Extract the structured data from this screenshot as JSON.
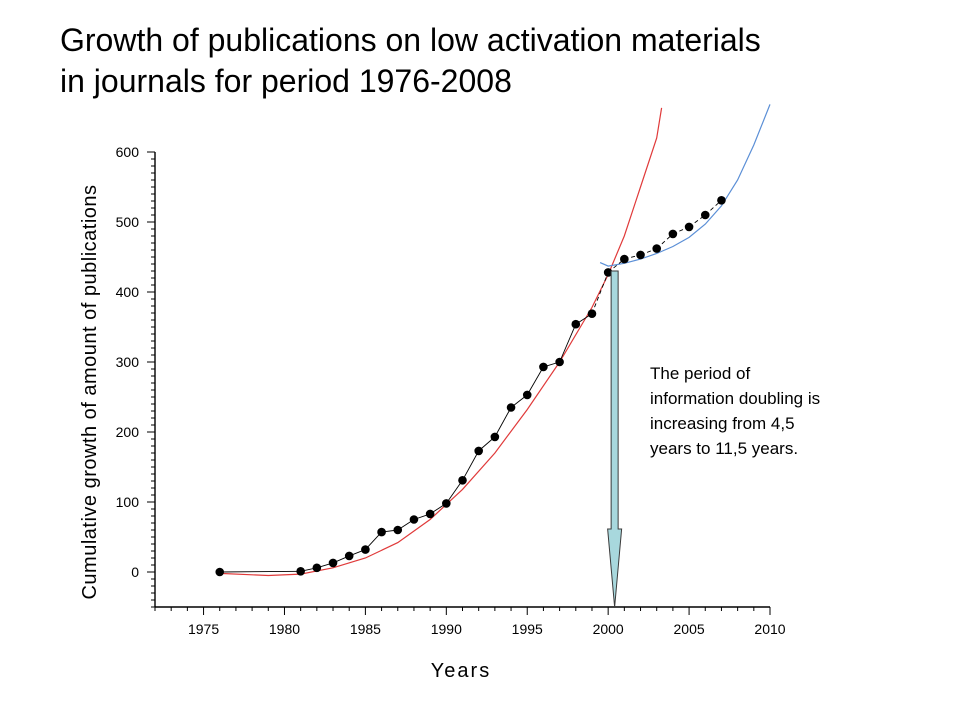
{
  "title": {
    "line1": "Growth of publications on low activation materials",
    "line2": "in journals for period 1976-2008"
  },
  "annotation": {
    "line1": "The period of",
    "line2": "information doubling is",
    "line3": "increasing  from 4,5",
    "line4": "years to 11,5 years."
  },
  "chart_data": {
    "type": "line",
    "xlabel": "Years",
    "ylabel": "Cumulative growth of amount of publications",
    "xlim": [
      1972,
      2010
    ],
    "ylim": [
      -50,
      600
    ],
    "xticks": [
      1975,
      1980,
      1985,
      1990,
      1995,
      2000,
      2005,
      2010
    ],
    "yticks": [
      0,
      100,
      200,
      300,
      400,
      500,
      600
    ],
    "grid": false,
    "legend": "none",
    "series": [
      {
        "marker": "circle",
        "line": "dashed",
        "color": "#000000",
        "points": [
          [
            1976,
            0
          ],
          [
            1981,
            1
          ],
          [
            1982,
            6
          ],
          [
            1983,
            13
          ],
          [
            1984,
            23
          ],
          [
            1985,
            32
          ],
          [
            1986,
            57
          ],
          [
            1987,
            60
          ],
          [
            1988,
            75
          ],
          [
            1989,
            83
          ],
          [
            1990,
            98
          ],
          [
            1991,
            131
          ],
          [
            1992,
            173
          ],
          [
            1993,
            193
          ],
          [
            1994,
            235
          ],
          [
            1995,
            253
          ],
          [
            1996,
            293
          ],
          [
            1997,
            300
          ],
          [
            1998,
            354
          ],
          [
            1999,
            369
          ],
          [
            2000,
            428
          ],
          [
            2001,
            447
          ],
          [
            2002,
            453
          ],
          [
            2003,
            462
          ],
          [
            2004,
            483
          ],
          [
            2005,
            493
          ],
          [
            2006,
            510
          ],
          [
            2007,
            531
          ]
        ]
      }
    ],
    "fit_curves": [
      {
        "color": "#e03a3a",
        "points": [
          [
            1976,
            -2
          ],
          [
            1979,
            -5
          ],
          [
            1981,
            -3
          ],
          [
            1983,
            6
          ],
          [
            1985,
            20
          ],
          [
            1987,
            42
          ],
          [
            1989,
            75
          ],
          [
            1991,
            118
          ],
          [
            1993,
            170
          ],
          [
            1995,
            232
          ],
          [
            1997,
            300
          ],
          [
            1999,
            378
          ],
          [
            2000,
            425
          ],
          [
            2001,
            480
          ],
          [
            2002,
            550
          ],
          [
            2003,
            620
          ],
          [
            2003.3,
            663
          ]
        ]
      },
      {
        "color": "#5b8fd6",
        "points": [
          [
            1999.5,
            442
          ],
          [
            2000,
            437
          ],
          [
            2001,
            441
          ],
          [
            2002,
            447
          ],
          [
            2003,
            455
          ],
          [
            2004,
            465
          ],
          [
            2005,
            478
          ],
          [
            2006,
            497
          ],
          [
            2007,
            523
          ],
          [
            2008,
            560
          ],
          [
            2009,
            610
          ],
          [
            2010,
            668
          ]
        ]
      }
    ],
    "arrow": {
      "x": 2000.4,
      "from": 430,
      "to": -50,
      "color": "#a8d8dd"
    }
  }
}
